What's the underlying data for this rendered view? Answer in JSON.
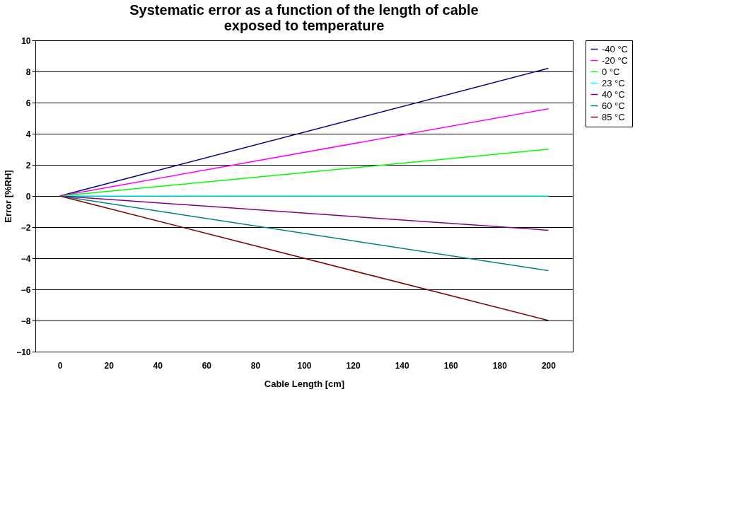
{
  "chart_data": {
    "type": "line",
    "title": "Systematic error as a function of the length of cable\nexposed to temperature",
    "xlabel": "Cable Length [cm]",
    "ylabel": "Error [%RH]",
    "x": [
      0,
      200
    ],
    "series": [
      {
        "name": "-40 °C",
        "color": "#000080",
        "values": [
          0,
          8.2
        ]
      },
      {
        "name": "-20 °C",
        "color": "#ff00ff",
        "values": [
          0,
          5.6
        ]
      },
      {
        "name": "0 °C",
        "color": "#00ff00",
        "values": [
          0,
          3.0
        ]
      },
      {
        "name": "23 °C",
        "color": "#00ffff",
        "values": [
          0,
          0
        ]
      },
      {
        "name": "40 °C",
        "color": "#800080",
        "values": [
          0,
          -2.2
        ]
      },
      {
        "name": "60 °C",
        "color": "#008080",
        "values": [
          0,
          -4.8
        ]
      },
      {
        "name": "85 °C",
        "color": "#800000",
        "values": [
          0,
          -8.0
        ]
      }
    ],
    "xlim": [
      -10,
      210
    ],
    "xticks": [
      0,
      20,
      40,
      60,
      80,
      100,
      120,
      140,
      160,
      180,
      200
    ],
    "ylim": [
      -10,
      10
    ],
    "yticks": [
      -10,
      -8,
      -6,
      -4,
      -2,
      0,
      2,
      4,
      6,
      8,
      10
    ],
    "grid": "y",
    "legend": "right",
    "marker": "none",
    "line_style": "solid"
  }
}
